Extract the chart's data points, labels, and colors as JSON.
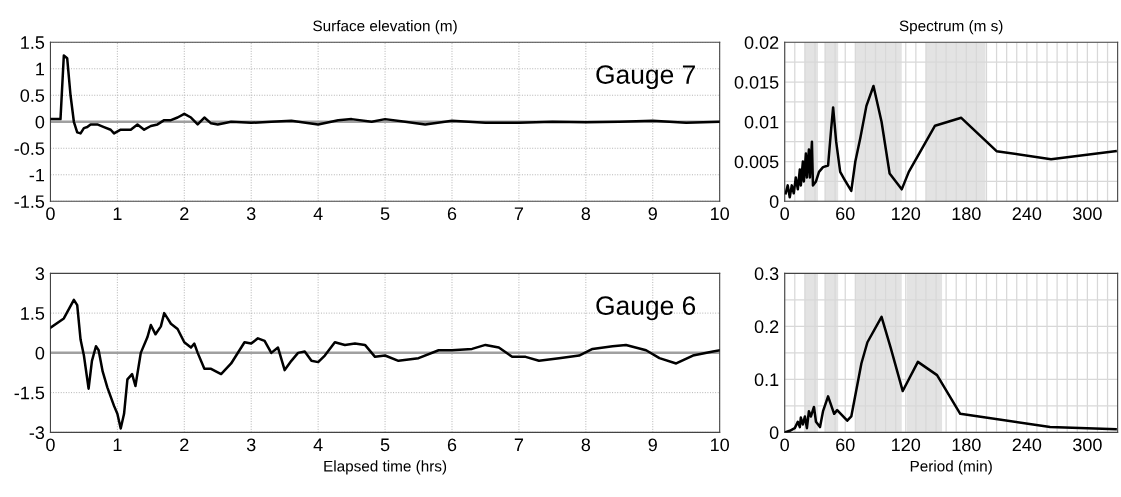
{
  "chart_data": [
    {
      "type": "line",
      "title": "Surface elevation (m)",
      "annotations": [
        "Gauge 7"
      ],
      "xlim": [
        0,
        10
      ],
      "ylim": [
        -1.5,
        1.5
      ],
      "xticks": [
        0,
        1,
        2,
        3,
        4,
        5,
        6,
        7,
        8,
        9,
        10
      ],
      "yticks": [
        -1.5,
        -1,
        -0.5,
        0,
        0.5,
        1,
        1.5
      ],
      "grid": true,
      "ref_lines": [
        {
          "axis": "y",
          "value": 0,
          "color": "#a0a0a0"
        }
      ],
      "series": [
        {
          "color": "#000000",
          "x": [
            0,
            0.15,
            0.2,
            0.25,
            0.3,
            0.35,
            0.4,
            0.45,
            0.5,
            0.55,
            0.6,
            0.7,
            0.8,
            0.9,
            0.95,
            1.05,
            1.2,
            1.3,
            1.4,
            1.5,
            1.6,
            1.7,
            1.8,
            1.9,
            2.0,
            2.1,
            2.2,
            2.3,
            2.4,
            2.5,
            2.7,
            3.0,
            3.3,
            3.6,
            4.0,
            4.3,
            4.5,
            4.8,
            5.0,
            5.3,
            5.6,
            6.0,
            6.5,
            7.0,
            7.5,
            8.0,
            8.5,
            9.0,
            9.5,
            10
          ],
          "values": [
            0.05,
            0.05,
            1.25,
            1.2,
            0.5,
            0.0,
            -0.2,
            -0.22,
            -0.12,
            -0.1,
            -0.05,
            -0.05,
            -0.1,
            -0.15,
            -0.22,
            -0.15,
            -0.15,
            -0.05,
            -0.15,
            -0.08,
            -0.05,
            0.03,
            0.03,
            0.08,
            0.15,
            0.08,
            -0.05,
            0.08,
            -0.03,
            -0.05,
            0.0,
            -0.02,
            0.0,
            0.02,
            -0.05,
            0.03,
            0.05,
            0.0,
            0.05,
            0.0,
            -0.05,
            0.02,
            -0.02,
            -0.02,
            0.0,
            -0.01,
            0.0,
            0.02,
            -0.02,
            0.0
          ]
        }
      ]
    },
    {
      "type": "line",
      "title": "Spectrum (m s)",
      "xlim": [
        0,
        330
      ],
      "ylim": [
        0,
        0.02
      ],
      "xticks": [
        0,
        {
          "value": 10,
          "label": null
        },
        {
          "value": 20,
          "label": null
        },
        {
          "value": 30,
          "label": null
        },
        {
          "value": 40,
          "label": null
        },
        {
          "value": 50,
          "label": null
        },
        60,
        {
          "value": 70,
          "label": null
        },
        {
          "value": 80,
          "label": null
        },
        {
          "value": 90,
          "label": null
        },
        {
          "value": 100,
          "label": null
        },
        {
          "value": 110,
          "label": null
        },
        120,
        {
          "value": 130,
          "label": null
        },
        {
          "value": 140,
          "label": null
        },
        {
          "value": 150,
          "label": null
        },
        {
          "value": 160,
          "label": null
        },
        {
          "value": 170,
          "label": null
        },
        180,
        {
          "value": 190,
          "label": null
        },
        {
          "value": 200,
          "label": null
        },
        {
          "value": 210,
          "label": null
        },
        {
          "value": 220,
          "label": null
        },
        {
          "value": 230,
          "label": null
        },
        240,
        {
          "value": 250,
          "label": null
        },
        {
          "value": 260,
          "label": null
        },
        {
          "value": 270,
          "label": null
        },
        {
          "value": 280,
          "label": null
        },
        {
          "value": 290,
          "label": null
        },
        300,
        {
          "value": 310,
          "label": null
        },
        {
          "value": 320,
          "label": null
        }
      ],
      "yticks": [
        0,
        {
          "value": 0.0025,
          "label": null
        },
        0.005,
        {
          "value": 0.0075,
          "label": null
        },
        0.01,
        {
          "value": 0.0125,
          "label": null
        },
        0.015,
        {
          "value": 0.0175,
          "label": null
        },
        0.02
      ],
      "grid": true,
      "bands": [
        {
          "axis": "x",
          "from": 20,
          "to": 33,
          "color": "#e3e3e3"
        },
        {
          "axis": "x",
          "from": 40,
          "to": 53,
          "color": "#e3e3e3"
        },
        {
          "axis": "x",
          "from": 70,
          "to": 116,
          "color": "#e3e3e3"
        },
        {
          "axis": "x",
          "from": 140,
          "to": 199,
          "color": "#e3e3e3"
        }
      ],
      "series": [
        {
          "color": "#000000",
          "x": [
            1,
            3,
            5,
            7,
            9,
            11,
            13,
            15,
            16,
            18,
            19,
            21,
            22,
            24,
            25,
            27,
            28,
            31,
            34,
            38,
            43,
            46,
            48,
            51,
            55,
            59,
            66,
            70,
            75,
            81,
            88,
            96,
            104,
            116,
            123,
            149,
            175,
            210,
            264,
            328
          ],
          "values": [
            0.001,
            0.002,
            0.0005,
            0.002,
            0.001,
            0.003,
            0.0015,
            0.004,
            0.002,
            0.005,
            0.0025,
            0.006,
            0.003,
            0.0065,
            0.003,
            0.0075,
            0.002,
            0.0025,
            0.0037,
            0.0043,
            0.0045,
            0.009,
            0.0118,
            0.0075,
            0.0037,
            0.0028,
            0.0013,
            0.005,
            0.008,
            0.012,
            0.0145,
            0.01,
            0.0035,
            0.0015,
            0.0037,
            0.0095,
            0.0105,
            0.0063,
            0.0053,
            0.0063
          ]
        }
      ]
    },
    {
      "type": "line",
      "xlabel": "Elapsed time (hrs)",
      "annotations": [
        "Gauge 6"
      ],
      "xlim": [
        0,
        10
      ],
      "ylim": [
        -3,
        3
      ],
      "xticks": [
        0,
        1,
        2,
        3,
        4,
        5,
        6,
        7,
        8,
        9,
        10
      ],
      "yticks": [
        -3,
        -1.5,
        0,
        1.5,
        3
      ],
      "grid": true,
      "ref_lines": [
        {
          "axis": "y",
          "value": 0,
          "color": "#a0a0a0"
        }
      ],
      "series": [
        {
          "color": "#000000",
          "x": [
            0,
            0.2,
            0.35,
            0.4,
            0.45,
            0.5,
            0.57,
            0.62,
            0.68,
            0.72,
            0.78,
            0.85,
            0.95,
            1.0,
            1.05,
            1.1,
            1.15,
            1.22,
            1.27,
            1.35,
            1.45,
            1.5,
            1.57,
            1.65,
            1.7,
            1.75,
            1.8,
            1.9,
            2.0,
            2.1,
            2.15,
            2.2,
            2.3,
            2.4,
            2.55,
            2.7,
            2.9,
            3.0,
            3.1,
            3.2,
            3.3,
            3.4,
            3.5,
            3.6,
            3.7,
            3.8,
            3.9,
            4.0,
            4.1,
            4.25,
            4.4,
            4.55,
            4.7,
            4.85,
            5.0,
            5.2,
            5.5,
            5.8,
            6.0,
            6.3,
            6.5,
            6.7,
            6.9,
            7.1,
            7.3,
            7.6,
            7.9,
            8.1,
            8.4,
            8.6,
            8.9,
            9.1,
            9.35,
            9.6,
            9.9,
            10
          ],
          "values": [
            0.95,
            1.3,
            2.0,
            1.8,
            0.5,
            -0.1,
            -1.35,
            -0.3,
            0.25,
            0.1,
            -0.7,
            -1.3,
            -2.0,
            -2.3,
            -2.85,
            -2.3,
            -1.0,
            -0.8,
            -1.25,
            0.0,
            0.6,
            1.05,
            0.7,
            1.0,
            1.5,
            1.3,
            1.1,
            0.9,
            0.4,
            0.2,
            0.35,
            0.0,
            -0.6,
            -0.6,
            -0.8,
            -0.4,
            0.4,
            0.35,
            0.55,
            0.45,
            0.0,
            0.2,
            -0.65,
            -0.3,
            0.0,
            0.05,
            -0.3,
            -0.35,
            -0.1,
            0.4,
            0.3,
            0.35,
            0.3,
            -0.15,
            -0.1,
            -0.3,
            -0.2,
            0.1,
            0.1,
            0.15,
            0.3,
            0.2,
            -0.15,
            -0.15,
            -0.3,
            -0.2,
            -0.1,
            0.15,
            0.25,
            0.3,
            0.1,
            -0.2,
            -0.4,
            -0.1,
            0.05,
            0.1
          ]
        }
      ]
    },
    {
      "type": "line",
      "xlabel": "Period (min)",
      "xlim": [
        0,
        330
      ],
      "ylim": [
        0,
        0.3
      ],
      "xticks": [
        0,
        {
          "value": 10,
          "label": null
        },
        {
          "value": 20,
          "label": null
        },
        {
          "value": 30,
          "label": null
        },
        {
          "value": 40,
          "label": null
        },
        {
          "value": 50,
          "label": null
        },
        60,
        {
          "value": 70,
          "label": null
        },
        {
          "value": 80,
          "label": null
        },
        {
          "value": 90,
          "label": null
        },
        {
          "value": 100,
          "label": null
        },
        {
          "value": 110,
          "label": null
        },
        120,
        {
          "value": 130,
          "label": null
        },
        {
          "value": 140,
          "label": null
        },
        {
          "value": 150,
          "label": null
        },
        {
          "value": 160,
          "label": null
        },
        {
          "value": 170,
          "label": null
        },
        180,
        {
          "value": 190,
          "label": null
        },
        {
          "value": 200,
          "label": null
        },
        {
          "value": 210,
          "label": null
        },
        {
          "value": 220,
          "label": null
        },
        {
          "value": 230,
          "label": null
        },
        240,
        {
          "value": 250,
          "label": null
        },
        {
          "value": 260,
          "label": null
        },
        {
          "value": 270,
          "label": null
        },
        {
          "value": 280,
          "label": null
        },
        {
          "value": 290,
          "label": null
        },
        300,
        {
          "value": 310,
          "label": null
        },
        {
          "value": 320,
          "label": null
        }
      ],
      "yticks": [
        0,
        {
          "value": 0.05,
          "label": null
        },
        0.1,
        {
          "value": 0.15,
          "label": null
        },
        0.2,
        {
          "value": 0.25,
          "label": null
        },
        0.3
      ],
      "grid": true,
      "bands": [
        {
          "axis": "x",
          "from": 20,
          "to": 33,
          "color": "#e3e3e3"
        },
        {
          "axis": "x",
          "from": 40,
          "to": 53,
          "color": "#e3e3e3"
        },
        {
          "axis": "x",
          "from": 70,
          "to": 116,
          "color": "#e3e3e3"
        },
        {
          "axis": "x",
          "from": 121,
          "to": 156,
          "color": "#e3e3e3"
        }
      ],
      "series": [
        {
          "color": "#000000",
          "x": [
            0,
            5,
            10,
            13,
            15,
            16,
            18,
            20,
            22,
            24,
            26,
            29,
            31,
            35,
            38,
            43,
            49,
            52,
            62,
            66,
            76,
            82,
            96,
            105,
            117,
            132,
            151,
            174,
            263,
            328
          ],
          "values": [
            0,
            0.003,
            0.008,
            0.02,
            0.01,
            0.028,
            0.015,
            0.03,
            0.008,
            0.04,
            0.03,
            0.048,
            0.02,
            0.01,
            0.04,
            0.068,
            0.035,
            0.042,
            0.022,
            0.03,
            0.13,
            0.17,
            0.218,
            0.16,
            0.078,
            0.133,
            0.108,
            0.035,
            0.01,
            0.006
          ]
        }
      ]
    }
  ]
}
